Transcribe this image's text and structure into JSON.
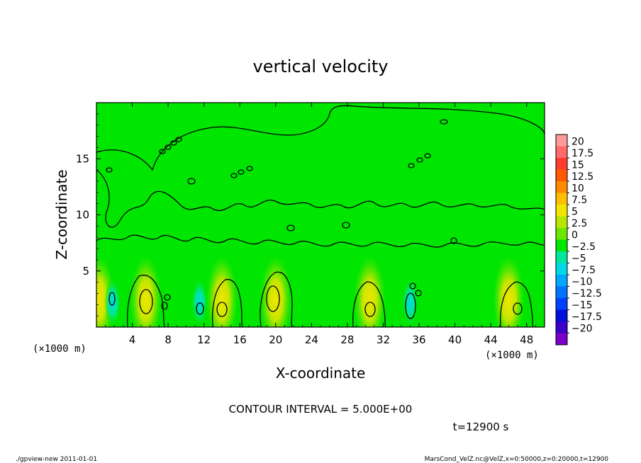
{
  "chart_data": {
    "type": "heatmap",
    "title": "vertical velocity",
    "xlabel": "X-coordinate",
    "ylabel": "Z-coordinate",
    "x_unit": "(×1000 m)",
    "z_unit": "(×1000 m)",
    "xlim": [
      0,
      50
    ],
    "ylim": [
      0,
      20
    ],
    "x_ticks": [
      4,
      8,
      12,
      16,
      20,
      24,
      28,
      32,
      36,
      40,
      44,
      48
    ],
    "y_ticks": [
      5,
      10,
      15
    ],
    "contour_interval_text": "CONTOUR INTERVAL = 5.000E+00",
    "time_text": "t=12900 s",
    "colorbar": {
      "levels": [
        20,
        17.5,
        15,
        12.5,
        10,
        7.5,
        5,
        2.5,
        0,
        -2.5,
        -5,
        -7.5,
        -10,
        -12.5,
        -15,
        -17.5,
        -20
      ],
      "colors": [
        "#ff9a9a",
        "#ff6a6a",
        "#ff3c2e",
        "#ff5a00",
        "#ff8a00",
        "#ffbe00",
        "#f0e600",
        "#b8e600",
        "#6ae600",
        "#00e600",
        "#00e69a",
        "#00d8e6",
        "#00a8ff",
        "#0072ff",
        "#0040ff",
        "#0010d8",
        "#3c00c8",
        "#7a00c8"
      ]
    },
    "updrafts_x": [
      0.3,
      5.5,
      14.0,
      20.0,
      30.5,
      46.0
    ],
    "downdrafts_x": [
      1.8,
      11.5,
      35.0
    ]
  },
  "footer": {
    "left": "./gpview-new   2011-01-01",
    "right": "MarsCond_VelZ.nc@VelZ,x=0:50000,z=0:20000,t=12900"
  }
}
